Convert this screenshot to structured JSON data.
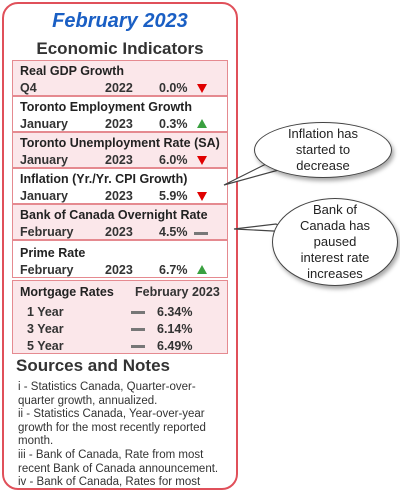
{
  "header": {
    "title": "February 2023",
    "subtitle": "Economic Indicators"
  },
  "indicators": [
    {
      "title": "Real GDP Growth",
      "period": "Q4",
      "year": "2022",
      "value": "0.0%",
      "trend": "down"
    },
    {
      "title": "Toronto Employment Growth",
      "period": "January",
      "year": "2023",
      "value": "0.3%",
      "trend": "up"
    },
    {
      "title": "Toronto Unemployment Rate (SA)",
      "period": "January",
      "year": "2023",
      "value": "6.0%",
      "trend": "down"
    },
    {
      "title": "Inflation (Yr./Yr. CPI Growth)",
      "period": "January",
      "year": "2023",
      "value": "5.9%",
      "trend": "down"
    },
    {
      "title": "Bank of Canada Overnight Rate",
      "period": "February",
      "year": "2023",
      "value": "4.5%",
      "trend": "flat"
    },
    {
      "title": "Prime Rate",
      "period": "February",
      "year": "2023",
      "value": "6.7%",
      "trend": "up"
    }
  ],
  "mortgage": {
    "title": "Mortgage Rates",
    "date": "February 2023",
    "rows": [
      {
        "term": "1 Year",
        "value": "6.34%",
        "trend": "flat"
      },
      {
        "term": "3 Year",
        "value": "6.14%",
        "trend": "flat"
      },
      {
        "term": "5 Year",
        "value": "6.49%",
        "trend": "flat"
      }
    ]
  },
  "notes": {
    "title": "Sources and Notes",
    "items": [
      "i - Statistics Canada, Quarter-over-quarter growth, annualized.",
      "ii - Statistics Canada, Year-over-year growth for the most recently reported month.",
      "iii - Bank of Canada, Rate from most recent Bank of Canada announcement.",
      "iv - Bank of Canada, Rates for most recently completed month."
    ]
  },
  "callouts": {
    "inflation": "Inflation has started to decrease",
    "boc": "Bank of Canada has paused interest rate increases"
  },
  "colors": {
    "title_blue": "#1a5fc4",
    "border_red": "#e0505a",
    "section_pink": "#fbe7ea",
    "down_red": "#e00000",
    "up_green": "#3aa040",
    "flat_gray": "#777777"
  },
  "icons": {
    "down": "red-down-triangle-icon",
    "up": "green-up-triangle-icon",
    "flat": "gray-dash-icon"
  }
}
